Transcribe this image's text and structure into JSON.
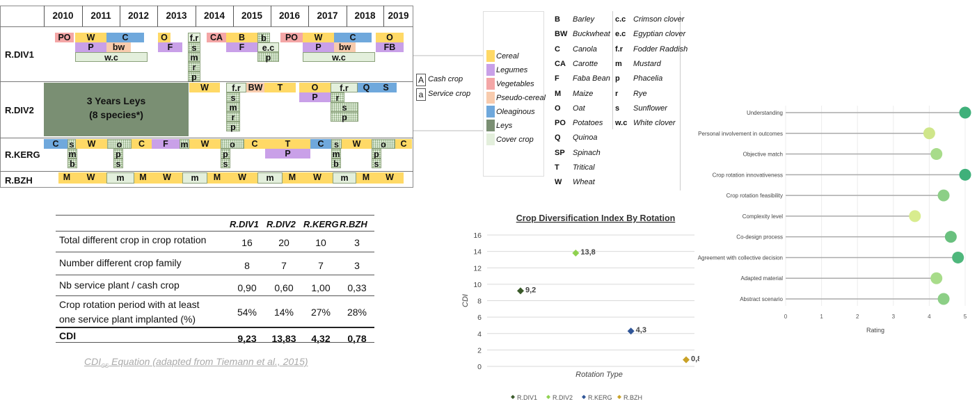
{
  "years": [
    "2010",
    "2011",
    "2012",
    "2013",
    "2014",
    "2015",
    "2016",
    "2017",
    "2018",
    "2019"
  ],
  "rows": [
    "R.DIV1",
    "R.DIV2",
    "R.KERG",
    "R.BZH"
  ],
  "leys": {
    "line1": "3 Years Leys",
    "line2": "(8 species*)"
  },
  "colors": {
    "cereal": "#ffd966",
    "legume": "#c9a0e8",
    "vegetable": "#f4a6a6",
    "pseudo": "#f8cbad",
    "oleaginous": "#6fa8dc",
    "leys": "#7a8f73",
    "cover": "#e3efdc"
  },
  "cells": [
    {
      "r": 0,
      "t": "PO",
      "c": "vegetable"
    },
    {
      "r": 0,
      "t": "W",
      "c": "cereal"
    },
    {
      "r": 0,
      "t": "C",
      "c": "oleaginous"
    },
    {
      "r": 0,
      "t": "O",
      "c": "cereal"
    },
    {
      "r": 0,
      "t": "f.r",
      "c": "cover"
    },
    {
      "r": 0,
      "t": "CA",
      "c": "vegetable"
    },
    {
      "r": 0,
      "t": "B",
      "c": "cereal"
    },
    {
      "r": 0,
      "t": "b",
      "c": "cover"
    },
    {
      "r": 0,
      "t": "PO",
      "c": "vegetable"
    },
    {
      "r": 0,
      "t": "W",
      "c": "cereal"
    },
    {
      "r": 0,
      "t": "C",
      "c": "oleaginous"
    },
    {
      "r": 0,
      "t": "O",
      "c": "cereal"
    },
    {
      "r": 0,
      "t": "P",
      "c": "legume"
    },
    {
      "r": 0,
      "t": "bw",
      "c": "pseudo"
    },
    {
      "r": 0,
      "t": "F",
      "c": "legume"
    },
    {
      "r": 0,
      "t": "s",
      "c": "cover"
    },
    {
      "r": 0,
      "t": "F",
      "c": "legume"
    },
    {
      "r": 0,
      "t": "e.c",
      "c": "cover"
    },
    {
      "r": 0,
      "t": "P",
      "c": "legume"
    },
    {
      "r": 0,
      "t": "bw",
      "c": "pseudo"
    },
    {
      "r": 0,
      "t": "FB",
      "c": "legume"
    },
    {
      "r": 0,
      "t": "w.c",
      "c": "cover"
    },
    {
      "r": 0,
      "t": "m",
      "c": "cover"
    },
    {
      "r": 0,
      "t": "p",
      "c": "cover"
    },
    {
      "r": 0,
      "t": "w.c",
      "c": "cover"
    },
    {
      "r": 0,
      "t": "r",
      "c": "cover"
    },
    {
      "r": 0,
      "t": "p",
      "c": "cover"
    },
    {
      "r": 1,
      "t": "W",
      "c": "cereal"
    },
    {
      "r": 1,
      "t": "f.r",
      "c": "cover"
    },
    {
      "r": 1,
      "t": "BW",
      "c": "pseudo"
    },
    {
      "r": 1,
      "t": "T",
      "c": "cereal"
    },
    {
      "r": 1,
      "t": "O",
      "c": "cereal"
    },
    {
      "r": 1,
      "t": "f.r",
      "c": "cover"
    },
    {
      "r": 1,
      "t": "Q",
      "c": "oleaginous"
    },
    {
      "r": 1,
      "t": "S",
      "c": "oleaginous"
    },
    {
      "r": 1,
      "t": "s",
      "c": "cover"
    },
    {
      "r": 1,
      "t": "P",
      "c": "legume"
    },
    {
      "r": 1,
      "t": "r",
      "c": "cover"
    },
    {
      "r": 1,
      "t": "m",
      "c": "cover"
    },
    {
      "r": 1,
      "t": "s",
      "c": "cover"
    },
    {
      "r": 1,
      "t": "r",
      "c": "cover"
    },
    {
      "r": 1,
      "t": "p",
      "c": "cover"
    },
    {
      "r": 1,
      "t": "p",
      "c": "cover"
    },
    {
      "r": 2,
      "t": "C",
      "c": "oleaginous"
    },
    {
      "r": 2,
      "t": "s",
      "c": "cover"
    },
    {
      "r": 2,
      "t": "W",
      "c": "cereal"
    },
    {
      "r": 2,
      "t": "o",
      "c": "cover"
    },
    {
      "r": 2,
      "t": "C",
      "c": "cereal"
    },
    {
      "r": 2,
      "t": "F",
      "c": "legume"
    },
    {
      "r": 2,
      "t": "m",
      "c": "cover"
    },
    {
      "r": 2,
      "t": "W",
      "c": "cereal"
    },
    {
      "r": 2,
      "t": "o",
      "c": "cover"
    },
    {
      "r": 2,
      "t": "C",
      "c": "cereal"
    },
    {
      "r": 2,
      "t": "T",
      "c": "cereal"
    },
    {
      "r": 2,
      "t": "C",
      "c": "oleaginous"
    },
    {
      "r": 2,
      "t": "s",
      "c": "cover"
    },
    {
      "r": 2,
      "t": "W",
      "c": "cereal"
    },
    {
      "r": 2,
      "t": "o",
      "c": "cover"
    },
    {
      "r": 2,
      "t": "C",
      "c": "cereal"
    },
    {
      "r": 2,
      "t": "m",
      "c": "cover"
    },
    {
      "r": 2,
      "t": "p",
      "c": "cover"
    },
    {
      "r": 2,
      "t": "p",
      "c": "cover"
    },
    {
      "r": 2,
      "t": "P",
      "c": "legume"
    },
    {
      "r": 2,
      "t": "m",
      "c": "cover"
    },
    {
      "r": 2,
      "t": "p",
      "c": "cover"
    },
    {
      "r": 2,
      "t": "b",
      "c": "cover"
    },
    {
      "r": 2,
      "t": "s",
      "c": "cover"
    },
    {
      "r": 2,
      "t": "s",
      "c": "cover"
    },
    {
      "r": 2,
      "t": "b",
      "c": "cover"
    },
    {
      "r": 2,
      "t": "s",
      "c": "cover"
    },
    {
      "r": 3,
      "t": "M",
      "c": "cereal"
    },
    {
      "r": 3,
      "t": "W",
      "c": "cereal"
    },
    {
      "r": 3,
      "t": "m",
      "c": "cover"
    },
    {
      "r": 3,
      "t": "M",
      "c": "cereal"
    },
    {
      "r": 3,
      "t": "W",
      "c": "cereal"
    },
    {
      "r": 3,
      "t": "m",
      "c": "cover"
    },
    {
      "r": 3,
      "t": "M",
      "c": "cereal"
    },
    {
      "r": 3,
      "t": "W",
      "c": "cereal"
    },
    {
      "r": 3,
      "t": "m",
      "c": "cover"
    },
    {
      "r": 3,
      "t": "M",
      "c": "cereal"
    },
    {
      "r": 3,
      "t": "W",
      "c": "cereal"
    },
    {
      "r": 3,
      "t": "m",
      "c": "cover"
    },
    {
      "r": 3,
      "t": "M",
      "c": "cereal"
    },
    {
      "r": 3,
      "t": "W",
      "c": "cereal"
    }
  ],
  "crop_type": {
    "upper": "A",
    "upper_label": "Cash crop",
    "lower": "a",
    "lower_label": "Service crop"
  },
  "categories": [
    "Cereal",
    "Legumes",
    "Vegetables",
    "Pseudo-cereal",
    "Oleaginous",
    "Leys",
    "Cover crop"
  ],
  "abbreviations": [
    {
      "k": "B",
      "n": "Barley"
    },
    {
      "k": "BW",
      "n": "Buckwheat"
    },
    {
      "k": "C",
      "n": "Canola"
    },
    {
      "k": "CA",
      "n": "Carotte"
    },
    {
      "k": "F",
      "n": "Faba Bean"
    },
    {
      "k": "M",
      "n": "Maize"
    },
    {
      "k": "O",
      "n": "Oat"
    },
    {
      "k": "PO",
      "n": "Potatoes"
    },
    {
      "k": "Q",
      "n": "Quinoa"
    },
    {
      "k": "SP",
      "n": "Spinach"
    },
    {
      "k": "T",
      "n": "Tritical"
    },
    {
      "k": "W",
      "n": "Wheat"
    },
    {
      "k": "c.c",
      "n": "Crimson clover"
    },
    {
      "k": "e.c",
      "n": "Egyptian clover"
    },
    {
      "k": "f.r",
      "n": "Fodder Raddish"
    },
    {
      "k": "m",
      "n": "Mustard"
    },
    {
      "k": "p",
      "n": "Phacelia"
    },
    {
      "k": "r",
      "n": "Rye"
    },
    {
      "k": "s",
      "n": "Sunflower"
    },
    {
      "k": "w.c",
      "n": "White clover"
    }
  ],
  "table": {
    "headers": [
      "R.DIV1",
      "R.DIV2",
      "R.KERG",
      "R.BZH"
    ],
    "rows": [
      {
        "label": [
          "Total different crop in crop rotation"
        ],
        "values": [
          "16",
          "20",
          "10",
          "3"
        ]
      },
      {
        "label": [
          "Number different crop family"
        ],
        "values": [
          "8",
          "7",
          "7",
          "3"
        ]
      },
      {
        "label": [
          "Nb service plant / cash crop"
        ],
        "values": [
          "0,90",
          "0,60",
          "1,00",
          "0,33"
        ]
      },
      {
        "label": [
          "Crop rotation period with at least",
          "one service plant implanted (%)"
        ],
        "values": [
          "54%",
          "14%",
          "27%",
          "28%"
        ]
      },
      {
        "label": [
          "CDI"
        ],
        "values": [
          "9,23",
          "13,83",
          "4,32",
          "0,78"
        ]
      }
    ],
    "caption_main": "CDI",
    "caption_sub": "CS",
    "caption_rest": " Equation (adapted from Tiemann et al., 2015)"
  },
  "chart_data": [
    {
      "type": "scatter",
      "title": "Crop Diversification Index By Rotation",
      "xlabel": "Rotation Type",
      "ylabel": "CDI",
      "ylim": [
        0,
        16
      ],
      "yticks": [
        "0",
        "2",
        "4",
        "6",
        "8",
        "10",
        "12",
        "14",
        "16"
      ],
      "series": [
        {
          "name": "R.DIV1",
          "x": 1,
          "y": 9.2,
          "label": "9,2",
          "color": "#3a5a2a"
        },
        {
          "name": "R.DIV2",
          "x": 2,
          "y": 13.8,
          "label": "13,8",
          "color": "#8fd14f"
        },
        {
          "name": "R.KERG",
          "x": 3,
          "y": 4.3,
          "label": "4,3",
          "color": "#2f5597"
        },
        {
          "name": "R.BZH",
          "x": 4,
          "y": 0.8,
          "label": "0,8",
          "color": "#c9a227"
        }
      ],
      "legend": "bottom"
    },
    {
      "type": "scatter",
      "subtype": "lollipop",
      "xlabel": "Rating",
      "xlim": [
        0,
        5
      ],
      "xticks": [
        "0",
        "1",
        "2",
        "3",
        "4",
        "5"
      ],
      "categories": [
        "Understanding",
        "Personal involvement in outcomes",
        "Objective match",
        "Crop rotation innovativeness",
        "Crop rotation feasibility",
        "Complexity level",
        "Co-design process",
        "Agreement with collective decision",
        "Adapted material",
        "Abstract scenario"
      ],
      "values": [
        5.0,
        4.0,
        4.2,
        5.0,
        4.4,
        3.6,
        4.6,
        4.8,
        4.2,
        4.4
      ],
      "colors": [
        "#3fb07a",
        "#cfe68a",
        "#a8dc8a",
        "#3fb07a",
        "#8ccf86",
        "#d8ec8e",
        "#69c07e",
        "#4fb77c",
        "#a8dc8a",
        "#8ccf86"
      ]
    }
  ]
}
